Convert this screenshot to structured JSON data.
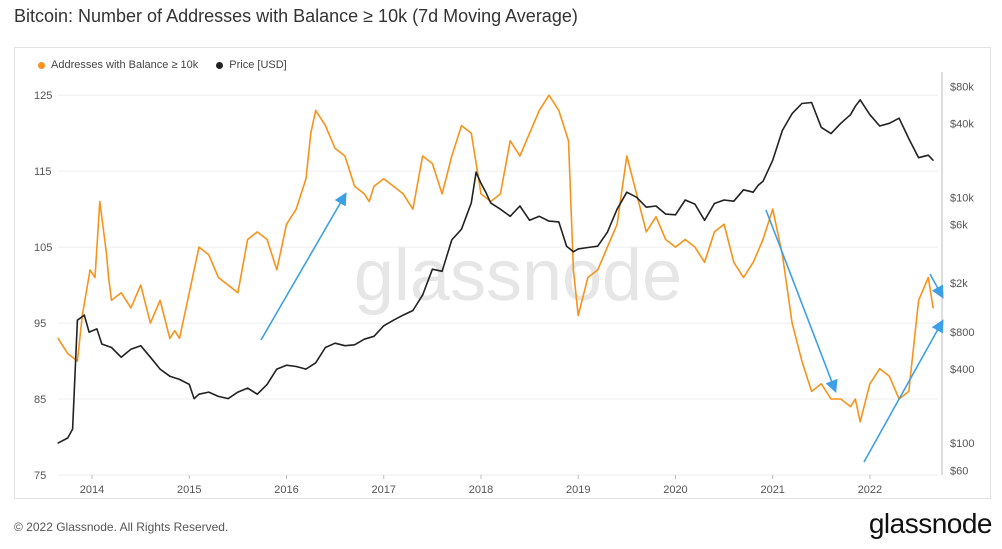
{
  "title": "Bitcoin: Number of Addresses with Balance ≥ 10k (7d Moving Average)",
  "footer": "© 2022 Glassnode. All Rights Reserved.",
  "brand": "glassnode",
  "watermark": "glassnode",
  "colors": {
    "addresses": "#f7931a",
    "price": "#222222",
    "arrow": "#3da0e6",
    "grid": "#eeeeee"
  },
  "chart_data": {
    "type": "line",
    "grid": true,
    "legend_position": "top-left",
    "x_ticks": [
      "2014",
      "2015",
      "2016",
      "2017",
      "2018",
      "2019",
      "2020",
      "2021",
      "2022"
    ],
    "x_range": [
      2013.65,
      2022.7
    ],
    "y_left": {
      "ticks": [
        "125",
        "115",
        "105",
        "95",
        "85",
        "75"
      ],
      "range": [
        75,
        127
      ]
    },
    "y_right": {
      "log": true,
      "ticks": [
        "$80k",
        "$40k",
        "$10k",
        "$6k",
        "$2k",
        "$800",
        "$400",
        "$100",
        "$60"
      ],
      "tick_values": [
        80000,
        40000,
        10000,
        6000,
        2000,
        800,
        400,
        100,
        60
      ],
      "range": [
        55,
        90000
      ]
    },
    "series": [
      {
        "name": "Addresses with Balance ≥ 10k",
        "axis": "left",
        "color": "#f7931a",
        "x": [
          2013.65,
          2013.75,
          2013.85,
          2013.9,
          2013.98,
          2014.03,
          2014.08,
          2014.15,
          2014.17,
          2014.2,
          2014.3,
          2014.4,
          2014.5,
          2014.6,
          2014.7,
          2014.8,
          2014.85,
          2014.9,
          2015.0,
          2015.1,
          2015.2,
          2015.3,
          2015.4,
          2015.5,
          2015.6,
          2015.7,
          2015.8,
          2015.9,
          2016.0,
          2016.1,
          2016.2,
          2016.25,
          2016.3,
          2016.4,
          2016.5,
          2016.6,
          2016.7,
          2016.8,
          2016.85,
          2016.9,
          2017.0,
          2017.1,
          2017.2,
          2017.3,
          2017.4,
          2017.5,
          2017.6,
          2017.7,
          2017.8,
          2017.9,
          2018.0,
          2018.1,
          2018.2,
          2018.3,
          2018.4,
          2018.5,
          2018.6,
          2018.7,
          2018.75,
          2018.8,
          2018.9,
          2018.95,
          2019.0,
          2019.1,
          2019.2,
          2019.3,
          2019.4,
          2019.5,
          2019.6,
          2019.7,
          2019.8,
          2019.9,
          2020.0,
          2020.1,
          2020.2,
          2020.3,
          2020.4,
          2020.5,
          2020.6,
          2020.7,
          2020.8,
          2020.9,
          2021.0,
          2021.1,
          2021.2,
          2021.3,
          2021.4,
          2021.5,
          2021.6,
          2021.7,
          2021.8,
          2021.85,
          2021.9,
          2022.0,
          2022.1,
          2022.2,
          2022.3,
          2022.4,
          2022.45,
          2022.5,
          2022.6,
          2022.65
        ],
        "y": [
          93,
          91,
          90,
          96,
          102,
          101,
          111,
          104,
          101,
          98,
          99,
          97,
          100,
          95,
          98,
          93,
          94,
          93,
          99,
          105,
          104,
          101,
          100,
          99,
          106,
          107,
          106,
          102,
          108,
          110,
          114,
          120,
          123,
          121,
          118,
          117,
          113,
          112,
          111,
          113,
          114,
          113,
          112,
          110,
          117,
          116,
          112,
          117,
          121,
          120,
          112,
          111,
          112,
          119,
          117,
          120,
          123,
          125,
          124,
          123,
          119,
          102,
          96,
          101,
          102,
          105,
          108,
          117,
          112,
          107,
          109,
          106,
          105,
          106,
          105,
          103,
          107,
          108,
          103,
          101,
          103,
          106,
          110,
          104,
          95,
          90,
          86,
          87,
          85,
          85,
          84,
          85,
          82,
          87,
          89,
          88,
          85,
          86,
          92,
          98,
          101,
          97
        ]
      },
      {
        "name": "Price [USD]",
        "axis": "right",
        "color": "#222222",
        "x": [
          2013.65,
          2013.75,
          2013.8,
          2013.85,
          2013.92,
          2013.97,
          2014.05,
          2014.1,
          2014.2,
          2014.3,
          2014.4,
          2014.5,
          2014.6,
          2014.7,
          2014.8,
          2014.9,
          2015.0,
          2015.05,
          2015.1,
          2015.2,
          2015.3,
          2015.4,
          2015.5,
          2015.6,
          2015.7,
          2015.8,
          2015.9,
          2016.0,
          2016.1,
          2016.2,
          2016.3,
          2016.4,
          2016.5,
          2016.6,
          2016.7,
          2016.8,
          2016.9,
          2017.0,
          2017.1,
          2017.2,
          2017.3,
          2017.4,
          2017.5,
          2017.6,
          2017.7,
          2017.8,
          2017.9,
          2017.95,
          2018.0,
          2018.05,
          2018.1,
          2018.2,
          2018.3,
          2018.4,
          2018.5,
          2018.6,
          2018.7,
          2018.8,
          2018.88,
          2018.95,
          2019.0,
          2019.1,
          2019.2,
          2019.3,
          2019.4,
          2019.5,
          2019.6,
          2019.7,
          2019.8,
          2019.9,
          2020.0,
          2020.1,
          2020.2,
          2020.3,
          2020.4,
          2020.5,
          2020.6,
          2020.7,
          2020.8,
          2020.85,
          2020.9,
          2021.0,
          2021.1,
          2021.2,
          2021.3,
          2021.4,
          2021.5,
          2021.6,
          2021.7,
          2021.8,
          2021.85,
          2021.9,
          2022.0,
          2022.1,
          2022.2,
          2022.3,
          2022.4,
          2022.5,
          2022.6,
          2022.65
        ],
        "y": [
          100,
          110,
          130,
          1000,
          1100,
          800,
          850,
          640,
          600,
          500,
          580,
          620,
          500,
          400,
          350,
          330,
          300,
          230,
          250,
          260,
          240,
          230,
          260,
          280,
          250,
          300,
          400,
          430,
          420,
          400,
          450,
          600,
          650,
          620,
          630,
          700,
          740,
          900,
          1000,
          1100,
          1200,
          1600,
          2600,
          2500,
          4500,
          5500,
          9000,
          16000,
          13000,
          11000,
          9000,
          8000,
          7000,
          8500,
          6500,
          7000,
          6400,
          6300,
          4000,
          3600,
          3800,
          3900,
          4000,
          5200,
          8000,
          11000,
          10000,
          8300,
          8500,
          7300,
          7200,
          9500,
          8800,
          6500,
          8900,
          9500,
          9300,
          11500,
          11000,
          12500,
          13500,
          20000,
          35000,
          48000,
          58000,
          59000,
          37000,
          33000,
          40000,
          47000,
          55000,
          62000,
          47000,
          38000,
          40000,
          44000,
          30000,
          21000,
          22000,
          20000
        ]
      }
    ]
  }
}
